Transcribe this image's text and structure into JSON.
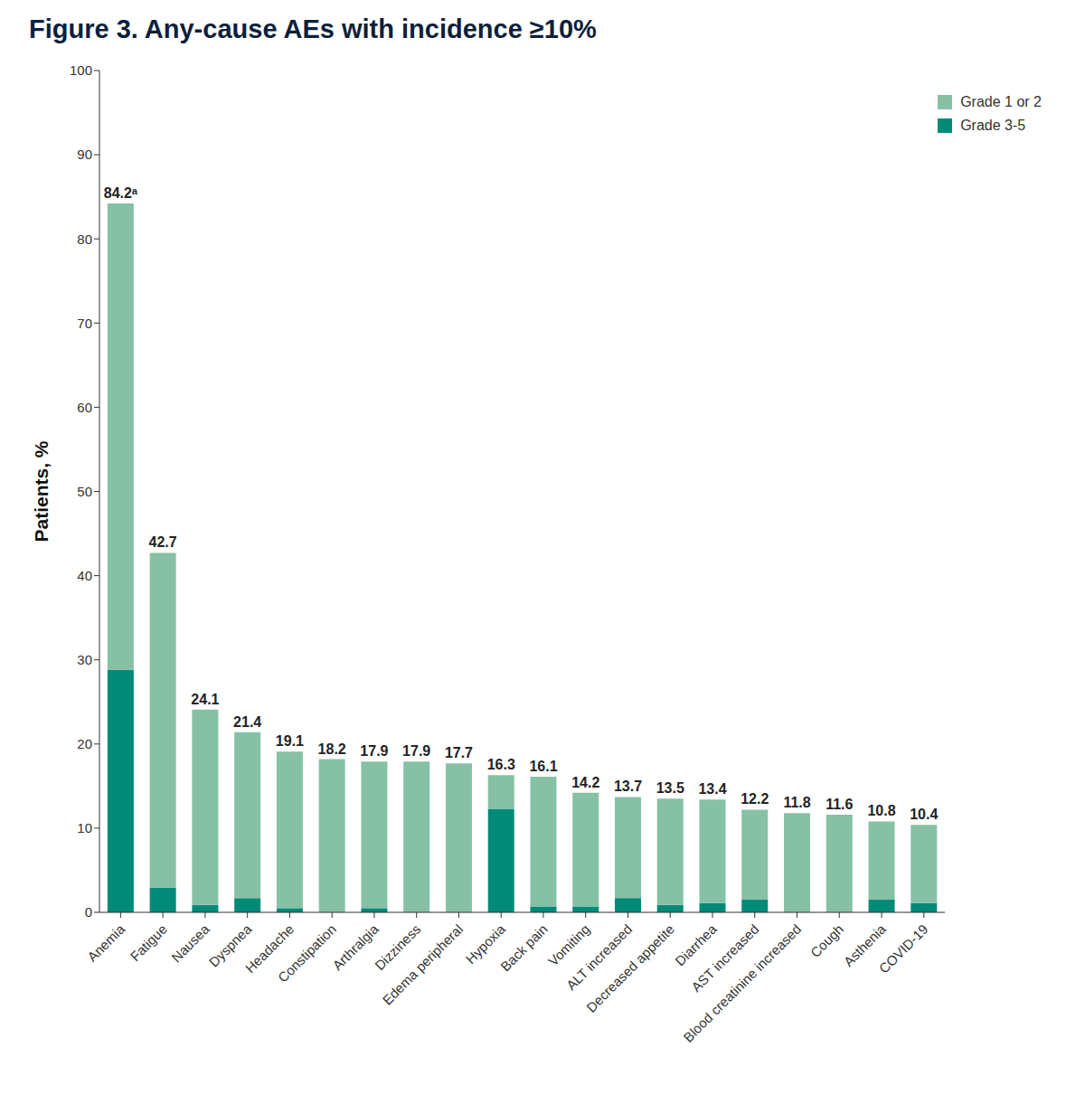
{
  "chart_data": {
    "type": "bar",
    "title": "Figure 3. Any-cause AEs with incidence ≥10%",
    "y_label": "Patients, %",
    "categories": [
      "Anemia",
      "Fatigue",
      "Nausea",
      "Dyspnea",
      "Headache",
      "Constipation",
      "Arthralgia",
      "Dizziness",
      "Edema peripheral",
      "Hypoxia",
      "Back pain",
      "Vomiting",
      "ALT increased",
      "Decreased appetite",
      "Diarrhea",
      "AST increased",
      "Blood creatinine increased",
      "Cough",
      "Asthenia",
      "COVID-19"
    ],
    "series": [
      {
        "name": "Grade 1 or 2",
        "color": "#86c1a5",
        "values": [
          55.4,
          39.8,
          23.2,
          19.7,
          18.6,
          18.2,
          17.4,
          17.9,
          17.7,
          4.0,
          15.4,
          13.5,
          12.0,
          12.6,
          12.3,
          10.7,
          11.8,
          11.6,
          9.3,
          9.3
        ]
      },
      {
        "name": "Grade 3-5",
        "color": "#008a78",
        "values": [
          28.8,
          2.9,
          0.9,
          1.7,
          0.5,
          0,
          0.5,
          0,
          0,
          12.3,
          0.7,
          0.7,
          1.7,
          0.9,
          1.1,
          1.5,
          0,
          0,
          1.5,
          1.1
        ]
      }
    ],
    "totals": {
      "values": [
        84.2,
        42.7,
        24.1,
        21.4,
        19.1,
        18.2,
        17.9,
        17.9,
        17.7,
        16.3,
        16.1,
        14.2,
        13.7,
        13.5,
        13.4,
        12.2,
        11.8,
        11.6,
        10.8,
        10.4
      ],
      "value_labels": [
        "84.2ᵃ",
        "42.7",
        "24.1",
        "21.4",
        "19.1",
        "18.2",
        "17.9",
        "17.9",
        "17.7",
        "16.3",
        "16.1",
        "14.2",
        "13.7",
        "13.5",
        "13.4",
        "12.2",
        "11.8",
        "11.6",
        "10.8",
        "10.4"
      ]
    },
    "stacked": true,
    "legend": "top-right",
    "grid": false,
    "ylim": [
      0,
      100
    ],
    "yticks": [
      0,
      10,
      20,
      30,
      40,
      50,
      60,
      70,
      80,
      90,
      100
    ]
  }
}
